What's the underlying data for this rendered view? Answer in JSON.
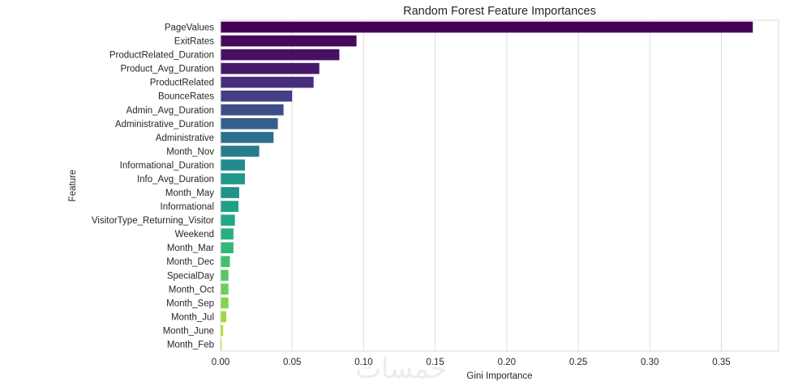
{
  "chart_data": {
    "type": "bar",
    "orientation": "horizontal",
    "title": "Random Forest Feature Importances",
    "xlabel": "Gini Importance",
    "ylabel": "Feature",
    "xlim": [
      0,
      0.39
    ],
    "xticks": [
      0.0,
      0.05,
      0.1,
      0.15,
      0.2,
      0.25,
      0.3,
      0.35
    ],
    "xtick_labels": [
      "0.00",
      "0.05",
      "0.10",
      "0.15",
      "0.20",
      "0.25",
      "0.30",
      "0.35"
    ],
    "grid": "vertical",
    "palette": "viridis",
    "categories": [
      "PageValues",
      "ExitRates",
      "ProductRelated_Duration",
      "Product_Avg_Duration",
      "ProductRelated",
      "BounceRates",
      "Admin_Avg_Duration",
      "Administrative_Duration",
      "Administrative",
      "Month_Nov",
      "Informational_Duration",
      "Info_Avg_Duration",
      "Month_May",
      "Informational",
      "VisitorType_Returning_Visitor",
      "Weekend",
      "Month_Mar",
      "Month_Dec",
      "SpecialDay",
      "Month_Oct",
      "Month_Sep",
      "Month_Jul",
      "Month_June",
      "Month_Feb"
    ],
    "values": [
      0.372,
      0.095,
      0.083,
      0.069,
      0.065,
      0.05,
      0.044,
      0.04,
      0.037,
      0.027,
      0.017,
      0.017,
      0.013,
      0.0125,
      0.01,
      0.009,
      0.009,
      0.0065,
      0.0055,
      0.0055,
      0.0055,
      0.004,
      0.0018,
      0.0008
    ],
    "colors": [
      "#440154",
      "#46085c",
      "#471063",
      "#48186a",
      "#472d7b",
      "#433e85",
      "#3d4e8a",
      "#355f8d",
      "#2e6e8e",
      "#287c8e",
      "#23898e",
      "#1f988b",
      "#21918c",
      "#1fa187",
      "#22a884",
      "#2ab07f",
      "#35b779",
      "#44bf70",
      "#56c667",
      "#6ccd5a",
      "#84d44b",
      "#9bd93c",
      "#b5de2b",
      "#cde11d"
    ]
  },
  "watermark": "خمسات"
}
